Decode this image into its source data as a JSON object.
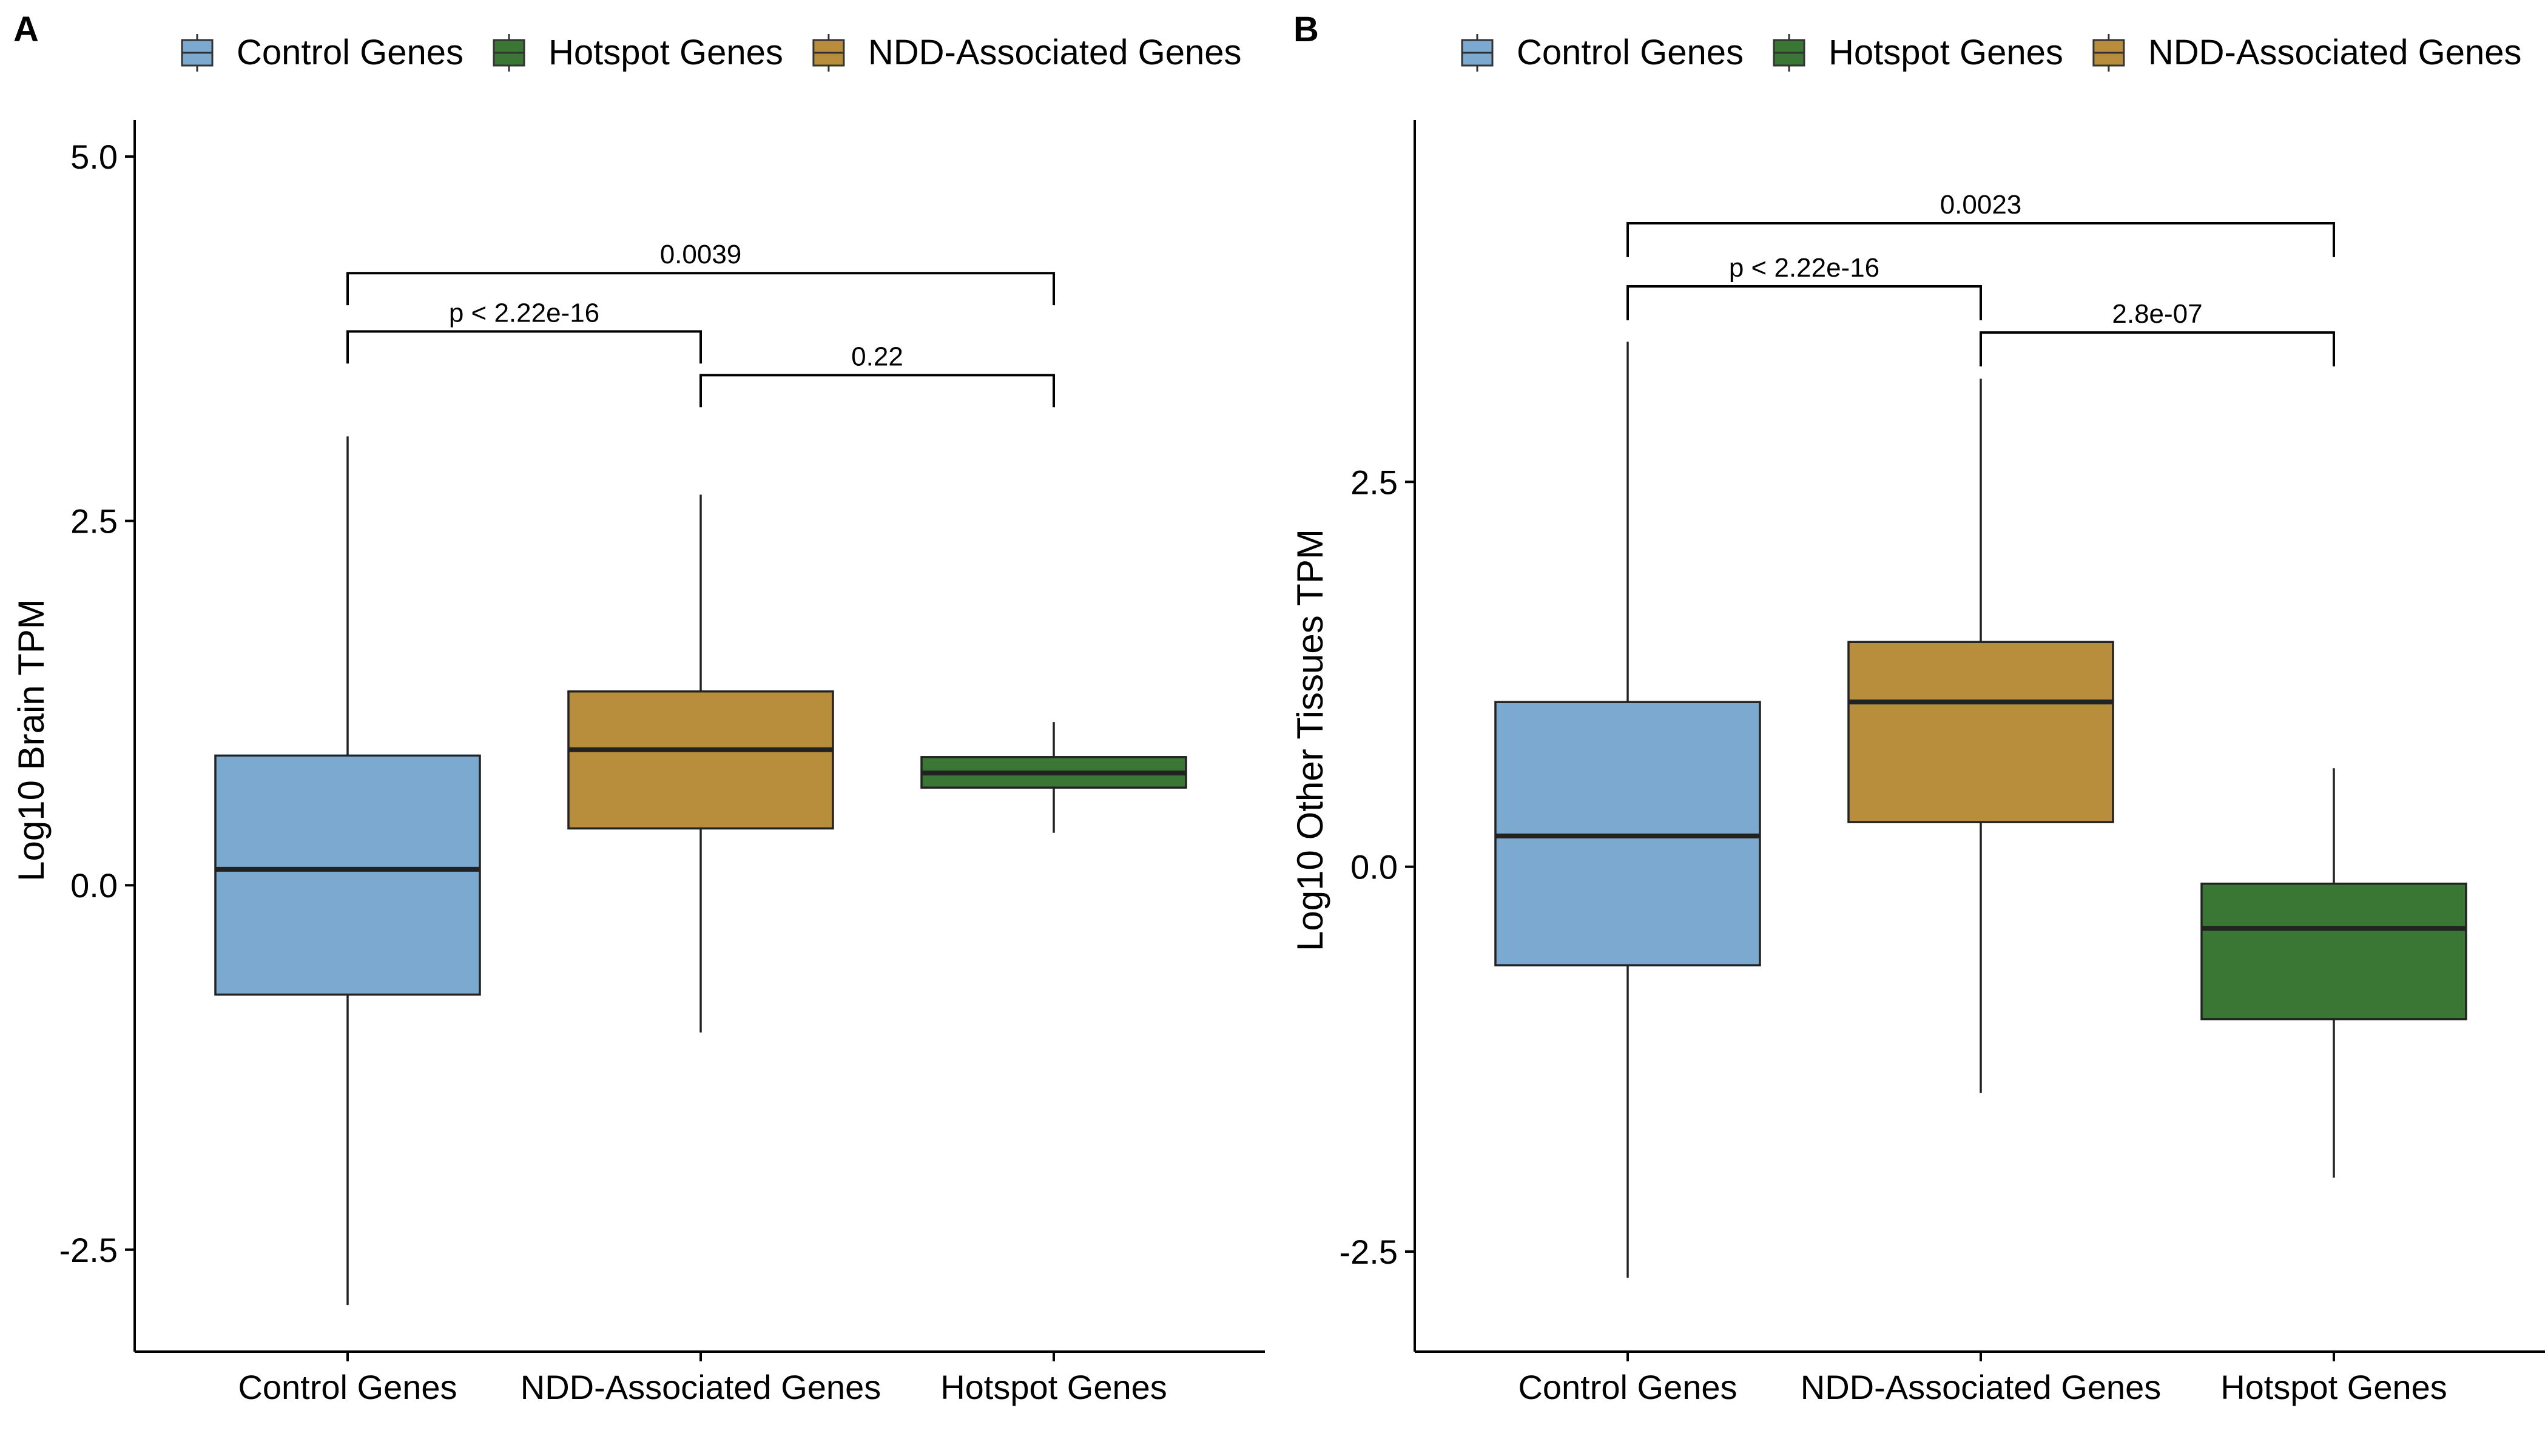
{
  "categories": [
    "Control Genes",
    "NDD-Associated Genes",
    "Hotspot Genes"
  ],
  "legend": [
    {
      "label": "Control Genes",
      "color": "#7BA9CF"
    },
    {
      "label": "Hotspot Genes",
      "color": "#3A7634"
    },
    {
      "label": "NDD-Associated Genes",
      "color": "#B88E3C"
    }
  ],
  "colors": {
    "Control Genes": "#7BA9CF",
    "NDD-Associated Genes": "#B88E3C",
    "Hotspot Genes": "#3A7634",
    "median": "#222222",
    "axis": "#000000"
  },
  "chart_data": [
    {
      "type": "box",
      "panel": "A",
      "ylabel": "Log10 Brain TPM",
      "ylim": [
        -3.2,
        5.25
      ],
      "yticks": [
        {
          "value": 5.0,
          "label": "5.0"
        },
        {
          "value": 2.5,
          "label": "2.5"
        },
        {
          "value": 0.0,
          "label": "0.0"
        },
        {
          "value": -2.5,
          "label": "-2.5"
        }
      ],
      "boxes": [
        {
          "category": "Control Genes",
          "lower_whisker": -2.88,
          "q1": -0.75,
          "median": 0.11,
          "q3": 0.89,
          "upper_whisker": 3.08
        },
        {
          "category": "NDD-Associated Genes",
          "lower_whisker": -1.01,
          "q1": 0.39,
          "median": 0.93,
          "q3": 1.33,
          "upper_whisker": 2.68
        },
        {
          "category": "Hotspot Genes",
          "lower_whisker": 0.36,
          "q1": 0.67,
          "median": 0.77,
          "q3": 0.88,
          "upper_whisker": 1.12
        }
      ],
      "comparisons": [
        {
          "from": 0,
          "to": 2,
          "label": "0.0039",
          "y": 4.2,
          "drop": 0.22
        },
        {
          "from": 0,
          "to": 1,
          "label": "p < 2.22e-16",
          "y": 3.8,
          "drop": 0.22
        },
        {
          "from": 1,
          "to": 2,
          "label": "0.22",
          "y": 3.5,
          "drop": 0.22
        }
      ]
    },
    {
      "type": "box",
      "panel": "B",
      "ylabel": "Log10 Other Tissues TPM",
      "ylim": [
        -3.15,
        4.85
      ],
      "yticks": [
        {
          "value": 2.5,
          "label": "2.5"
        },
        {
          "value": 0.0,
          "label": "0.0"
        },
        {
          "value": -2.5,
          "label": "-2.5"
        }
      ],
      "boxes": [
        {
          "category": "Control Genes",
          "lower_whisker": -2.67,
          "q1": -0.64,
          "median": 0.2,
          "q3": 1.07,
          "upper_whisker": 3.41
        },
        {
          "category": "NDD-Associated Genes",
          "lower_whisker": -1.47,
          "q1": 0.29,
          "median": 1.07,
          "q3": 1.46,
          "upper_whisker": 3.17
        },
        {
          "category": "Hotspot Genes",
          "lower_whisker": -2.02,
          "q1": -0.99,
          "median": -0.4,
          "q3": -0.11,
          "upper_whisker": 0.64
        }
      ],
      "comparisons": [
        {
          "from": 0,
          "to": 2,
          "label": "0.0023",
          "y": 4.18,
          "drop": 0.22
        },
        {
          "from": 0,
          "to": 1,
          "label": "p < 2.22e-16",
          "y": 3.77,
          "drop": 0.22
        },
        {
          "from": 1,
          "to": 2,
          "label": "2.8e-07",
          "y": 3.47,
          "drop": 0.22
        }
      ]
    }
  ]
}
